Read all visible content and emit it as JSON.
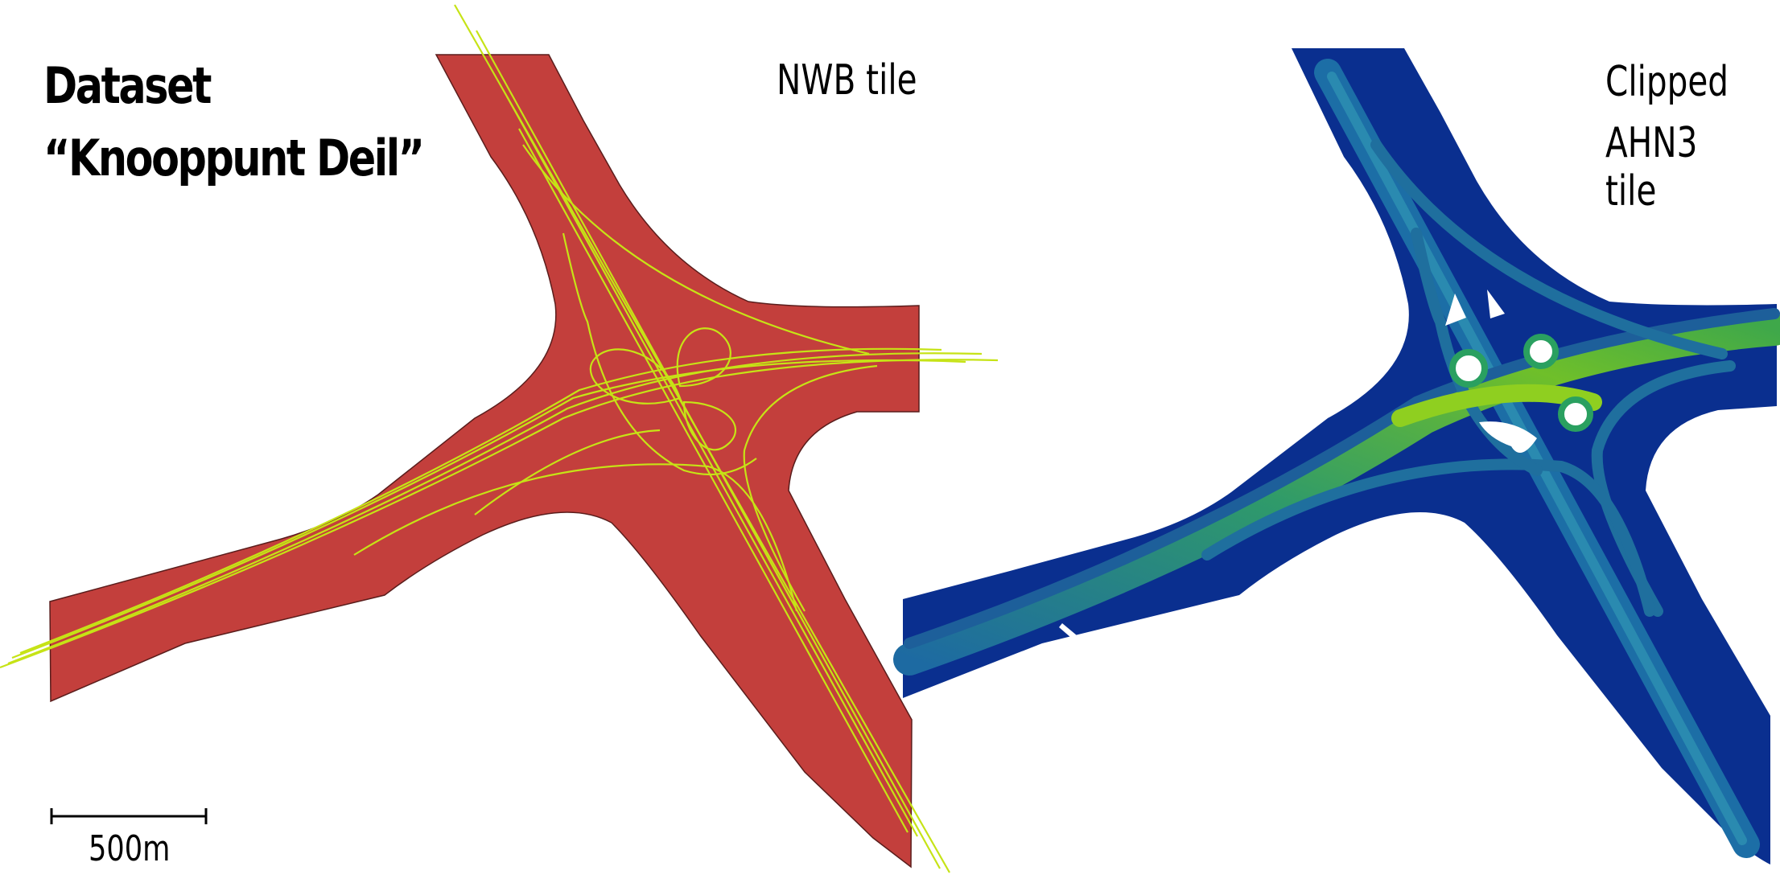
{
  "title": {
    "line1": "Dataset",
    "line2": "“Knooppunt Deil”"
  },
  "panels": {
    "left": {
      "label": "NWB tile"
    },
    "right": {
      "label_line1": "Clipped",
      "label_line2": "AHN3 tile"
    }
  },
  "scale_bar": {
    "label": "500m"
  },
  "colors": {
    "road_buffer": "#c33f3c",
    "road_centerline": "#c6e316",
    "ahn_base": "#0a2f8f",
    "ahn_mid": "#1b6fa0",
    "ahn_high": "#3aa33a",
    "ahn_peak": "#8fcf20"
  }
}
